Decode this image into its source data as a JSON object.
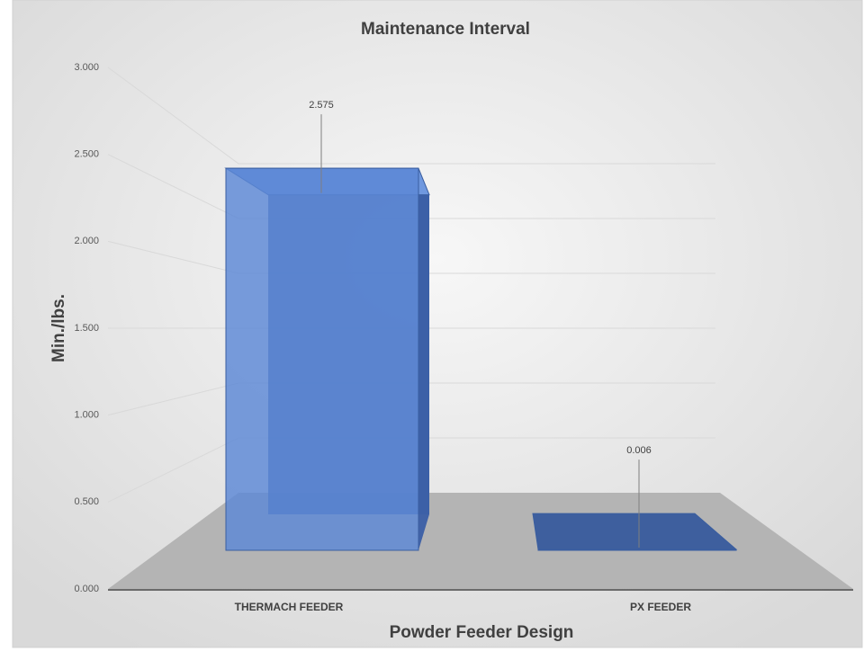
{
  "chart_data": {
    "type": "bar3d",
    "title": "Maintenance Interval",
    "x_label": "Powder Feeder Design",
    "y_label": "Min./lbs.",
    "categories": [
      "THERMACH FEEDER",
      "PX FEEDER"
    ],
    "values": [
      2.575,
      0.006
    ],
    "color": "#5b87d6",
    "ylim": [
      0,
      3
    ],
    "yticks": [
      {
        "value": 0,
        "label": "0.000"
      },
      {
        "value": 0.5,
        "label": "0.500"
      },
      {
        "value": 1,
        "label": "1.000"
      },
      {
        "value": 1.5,
        "label": "1.500"
      },
      {
        "value": 2,
        "label": "2.000"
      },
      {
        "value": 2.5,
        "label": "2.500"
      },
      {
        "value": 3,
        "label": "3.000"
      }
    ],
    "grid": true
  }
}
